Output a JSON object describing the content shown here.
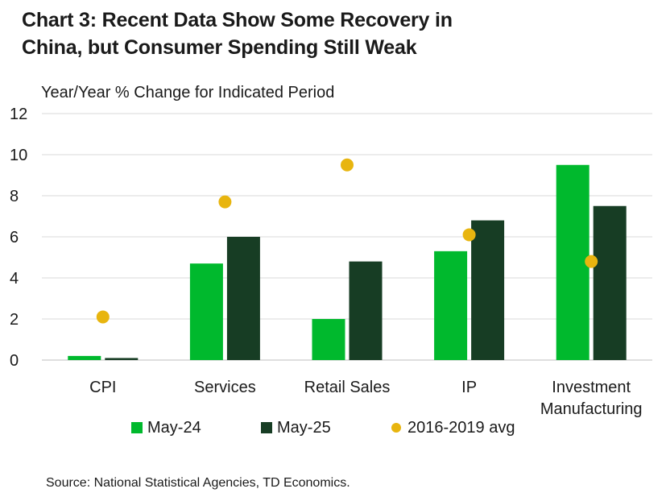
{
  "title_line1": "Chart 3: Recent Data Show Some Recovery in",
  "title_line2": "China, but Consumer Spending Still Weak",
  "subtitle": "Year/Year % Change for Indicated Period",
  "source": "Source: National Statistical Agencies, TD Economics.",
  "colors": {
    "may24": "#00b92d",
    "may25": "#173d24",
    "avg": "#e8b50f",
    "grid": "#d9d9d9"
  },
  "chart_data": {
    "type": "bar",
    "title": "Chart 3: Recent Data Show Some Recovery in China, but Consumer Spending Still Weak",
    "ylabel": "Year/Year % Change for Indicated Period",
    "xlabel": "",
    "ylim": [
      0,
      12
    ],
    "yticks": [
      "0",
      "2",
      "4",
      "6",
      "8",
      "10",
      "12"
    ],
    "grid": true,
    "legend_position": "bottom",
    "categories": [
      [
        "CPI"
      ],
      [
        "Services"
      ],
      [
        "Retail Sales"
      ],
      [
        "IP"
      ],
      [
        "Investment",
        "Manufacturing"
      ]
    ],
    "series": [
      {
        "name": "May-24",
        "kind": "bar",
        "values": [
          0.2,
          4.7,
          2.0,
          5.3,
          9.5
        ]
      },
      {
        "name": "May-25",
        "kind": "bar",
        "values": [
          0.1,
          6.0,
          4.8,
          6.8,
          7.5
        ]
      },
      {
        "name": "2016-2019 avg",
        "kind": "dot",
        "values": [
          2.1,
          7.7,
          9.5,
          6.1,
          4.8
        ]
      }
    ]
  }
}
